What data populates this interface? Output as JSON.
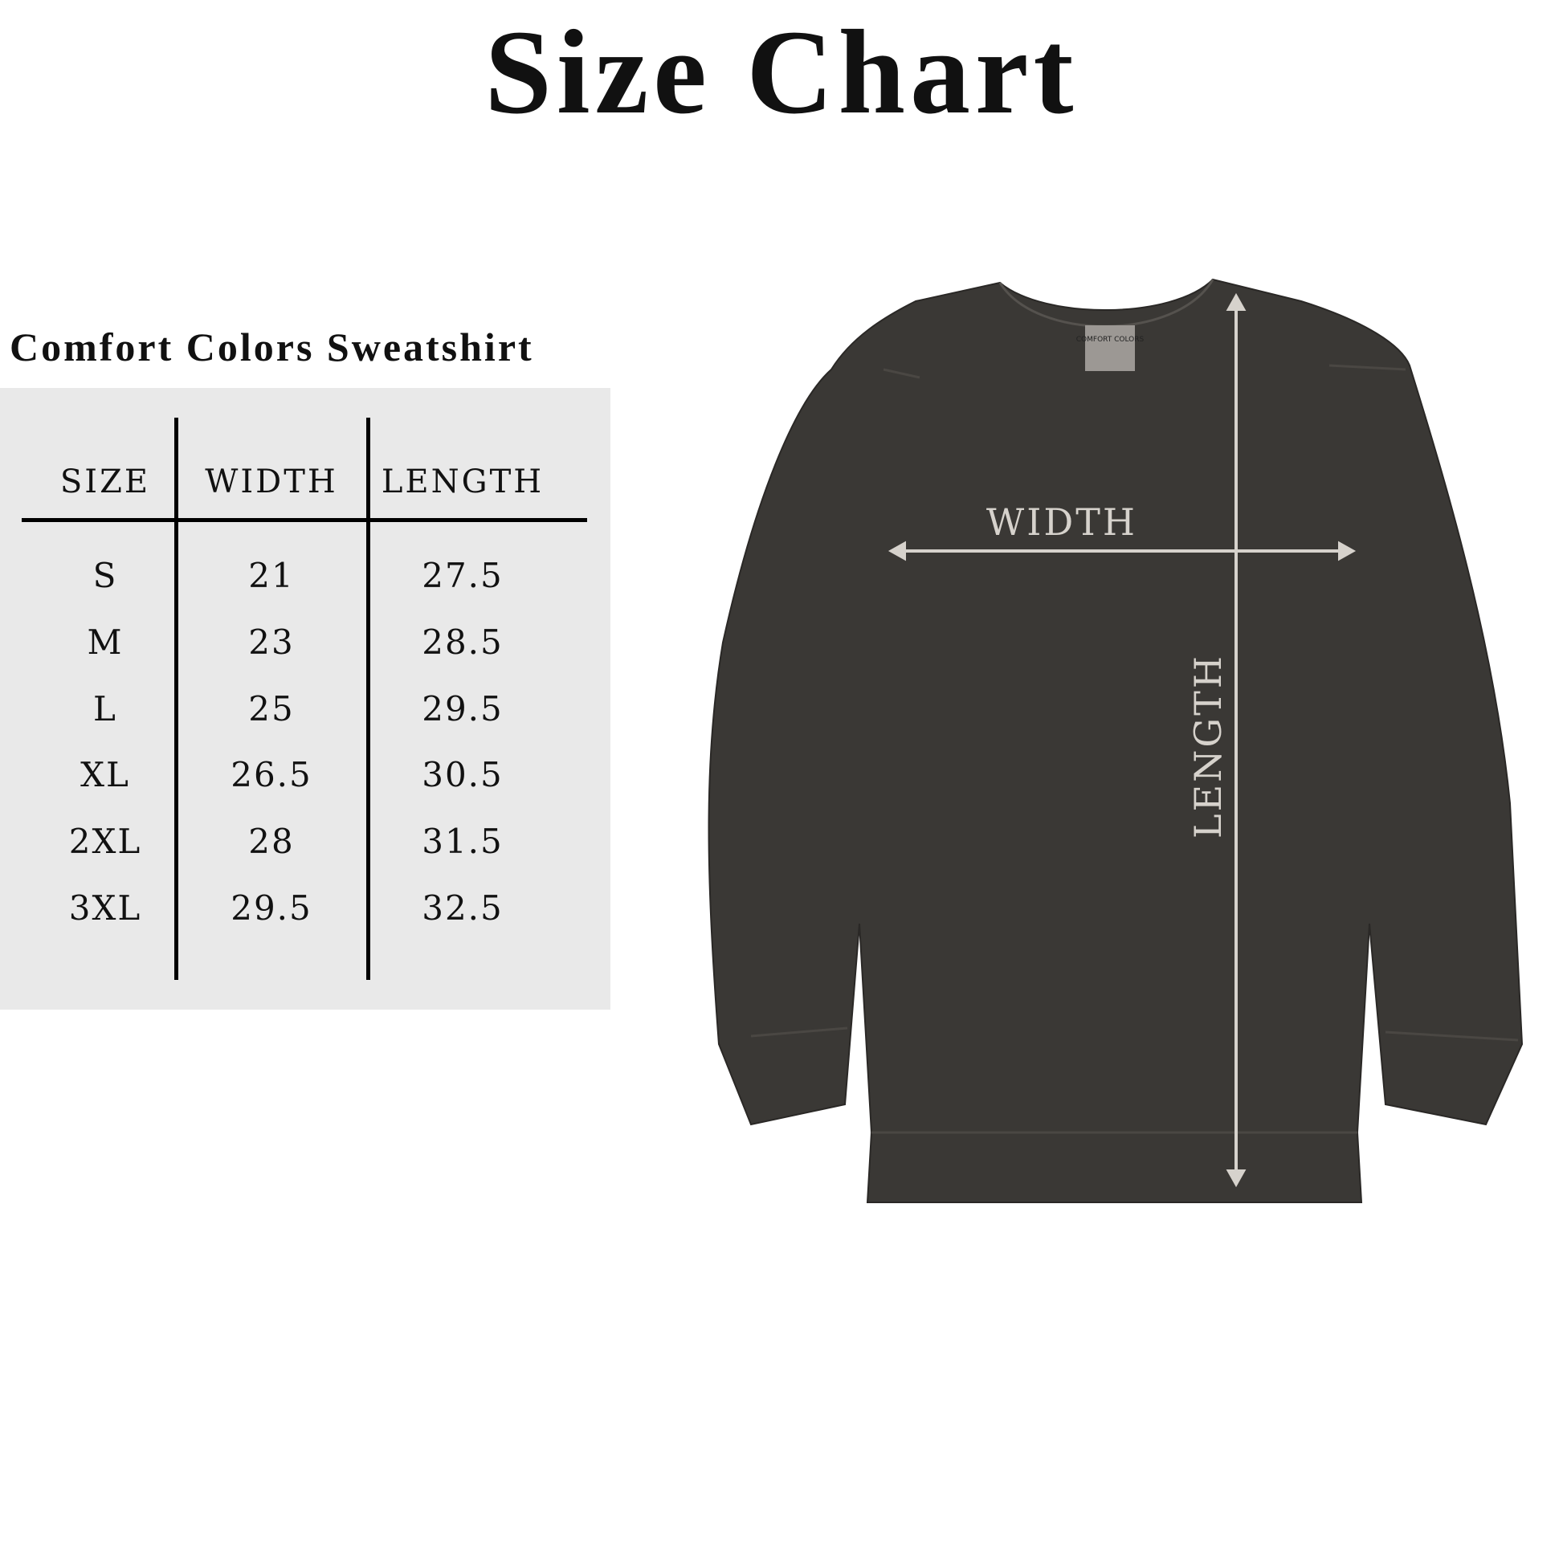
{
  "title": "Size Chart",
  "subtitle": "Comfort Colors Sweatshirt",
  "table": {
    "headers": [
      "SIZE",
      "WIDTH",
      "LENGTH"
    ],
    "rows": [
      [
        "S",
        "21",
        "27.5"
      ],
      [
        "M",
        "23",
        "28.5"
      ],
      [
        "L",
        "25",
        "29.5"
      ],
      [
        "XL",
        "26.5",
        "30.5"
      ],
      [
        "2XL",
        "28",
        "31.5"
      ],
      [
        "3XL",
        "29.5",
        "32.5"
      ]
    ]
  },
  "diagram": {
    "width_label": "WIDTH",
    "length_label": "LENGTH",
    "tag_text": "COMFORT COLORS"
  },
  "colors": {
    "panel": "#e9e9e9",
    "shirt": "#3a3835",
    "measure": "#d6d2cc"
  }
}
